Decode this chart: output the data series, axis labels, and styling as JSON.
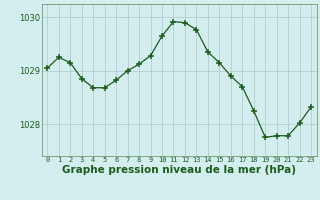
{
  "x": [
    0,
    1,
    2,
    3,
    4,
    5,
    6,
    7,
    8,
    9,
    10,
    11,
    12,
    13,
    14,
    15,
    16,
    17,
    18,
    19,
    20,
    21,
    22,
    23
  ],
  "y": [
    1029.05,
    1029.25,
    1029.15,
    1028.85,
    1028.68,
    1028.68,
    1028.82,
    1029.0,
    1029.12,
    1029.28,
    1029.65,
    1029.92,
    1029.9,
    1029.77,
    1029.35,
    1029.15,
    1028.9,
    1028.7,
    1028.25,
    1027.75,
    1027.78,
    1027.78,
    1028.02,
    1028.32
  ],
  "line_color": "#1a5c1a",
  "marker": "+",
  "marker_size": 4,
  "bg_color": "#d4eef0",
  "grid_color": "#b0cece",
  "text_color": "#1a5c1a",
  "xlabel": "Graphe pression niveau de la mer (hPa)",
  "ylim": [
    1027.4,
    1030.25
  ],
  "yticks": [
    1028,
    1029,
    1030
  ],
  "axis_fontsize": 6,
  "label_fontsize": 7.5
}
